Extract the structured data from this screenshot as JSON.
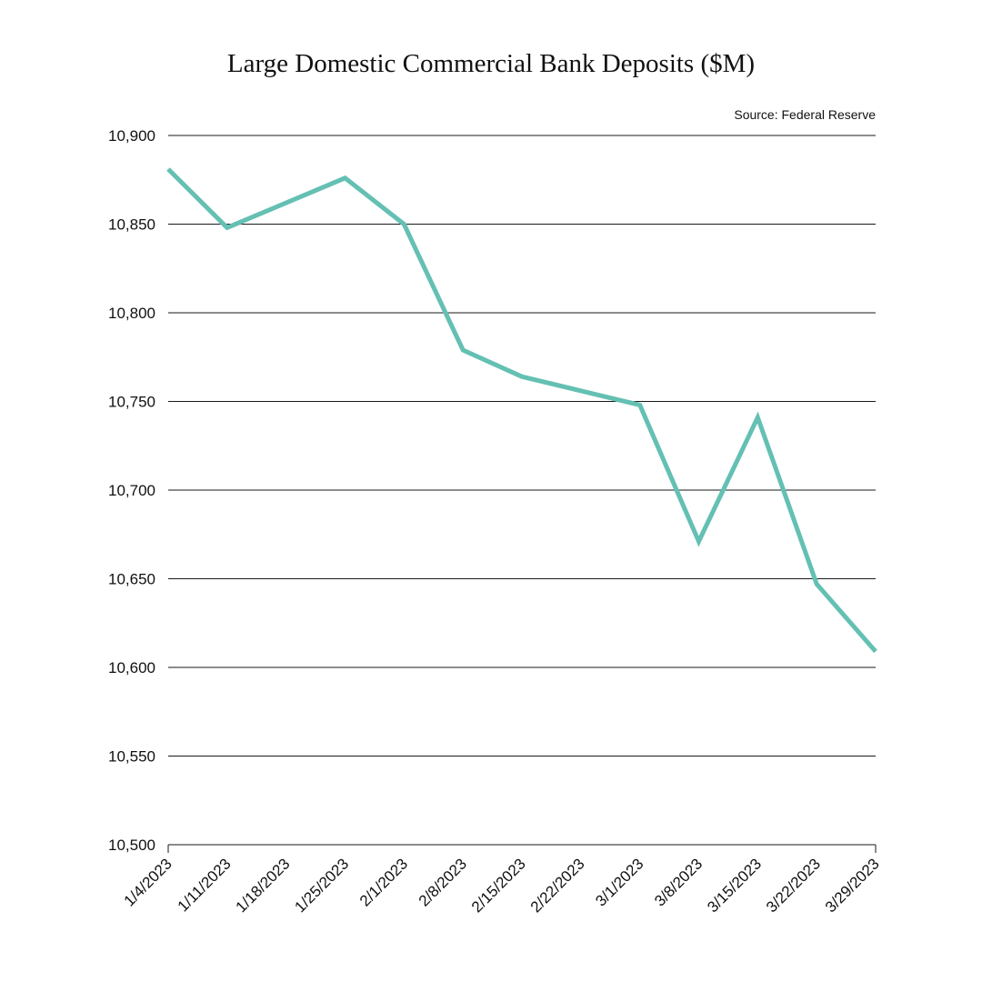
{
  "chart_data": {
    "type": "line",
    "title": "Large Domestic Commercial Bank Deposits ($M)",
    "source": "Source: Federal Reserve",
    "xlabel": "",
    "ylabel": "",
    "ylim": [
      10500,
      10900
    ],
    "yticks": [
      10500,
      10550,
      10600,
      10650,
      10700,
      10750,
      10800,
      10850,
      10900
    ],
    "ytick_labels": [
      "10,500",
      "10,550",
      "10,600",
      "10,650",
      "10,700",
      "10,750",
      "10,800",
      "10,850",
      "10,900"
    ],
    "grid": true,
    "categories": [
      "1/4/2023",
      "1/11/2023",
      "1/18/2023",
      "1/25/2023",
      "2/1/2023",
      "2/8/2023",
      "2/15/2023",
      "2/22/2023",
      "3/1/2023",
      "3/8/2023",
      "3/15/2023",
      "3/22/2023",
      "3/29/2023"
    ],
    "series": [
      {
        "values": [
          10881,
          10848,
          10862,
          10876,
          10850,
          10779,
          10764,
          10756,
          10748,
          10671,
          10741,
          10647,
          10609
        ],
        "color": "#64c0b3"
      }
    ]
  }
}
